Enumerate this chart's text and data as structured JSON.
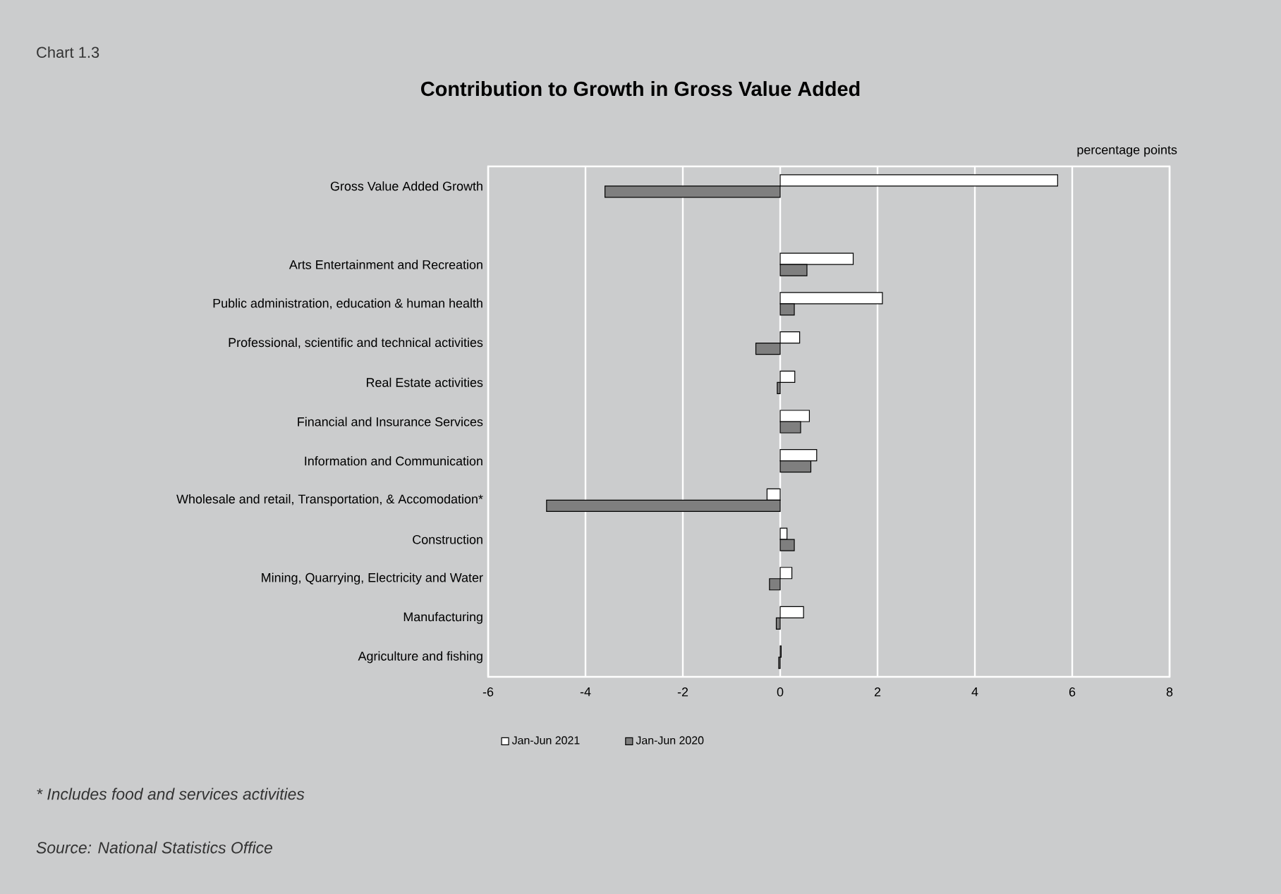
{
  "chart_data": {
    "type": "bar",
    "orientation": "horizontal",
    "title": "Contribution to Growth in Gross Value Added",
    "categories": [
      "Gross Value Added Growth",
      null,
      "Arts Entertainment and Recreation",
      "Public administration, education & human health",
      "Professional, scientific and technical activities",
      "Real Estate activities",
      "Financial and Insurance Services",
      "Information and Communication",
      "Wholesale and retail, Transportation, & Accomodation*",
      "Construction",
      "Mining, Quarrying, Electricity and Water",
      "Manufacturing",
      "Agriculture and fishing"
    ],
    "series": [
      {
        "name": "Jan-Jun 2021",
        "color": "#ffffff",
        "values": [
          5.7,
          null,
          1.5,
          2.1,
          0.4,
          0.3,
          0.6,
          0.75,
          -0.27,
          0.14,
          0.24,
          0.48,
          0.02
        ]
      },
      {
        "name": "Jan-Jun 2020",
        "color": "#7f7f7f",
        "values": [
          -3.6,
          null,
          0.55,
          0.29,
          -0.5,
          -0.06,
          0.42,
          0.63,
          -4.8,
          0.29,
          -0.22,
          -0.08,
          -0.03
        ]
      }
    ],
    "xlim": [
      -6,
      8
    ],
    "xticks": [
      -6,
      -4,
      -2,
      0,
      2,
      4,
      6,
      8
    ],
    "grid": "x",
    "legend": "bottom",
    "annotations": [
      "Chart 1.3",
      "percentage points",
      "* Includes food and services activities",
      "Source: National Statistics Office"
    ]
  }
}
